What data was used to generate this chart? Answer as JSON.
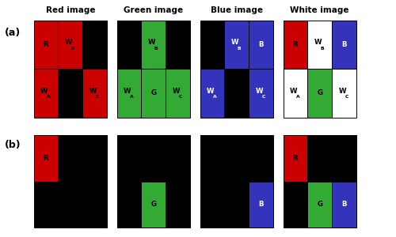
{
  "fig_width": 5.0,
  "fig_height": 3.0,
  "dpi": 100,
  "background": "#ffffff",
  "col_titles": [
    "Red image",
    "Green image",
    "Blue image",
    "White image"
  ],
  "cell_colors": {
    "K": "#000000",
    "R": "#cc0000",
    "G": "#33aa33",
    "B": "#3333bb",
    "W": "#ffffff"
  },
  "grids_a": [
    [
      [
        "R",
        "R",
        "K"
      ],
      [
        "R",
        "K",
        "R"
      ]
    ],
    [
      [
        "K",
        "G",
        "K"
      ],
      [
        "G",
        "G",
        "G"
      ]
    ],
    [
      [
        "K",
        "B",
        "B"
      ],
      [
        "B",
        "K",
        "B"
      ]
    ],
    [
      [
        "R",
        "W",
        "B"
      ],
      [
        "W",
        "G",
        "W"
      ]
    ]
  ],
  "labels_a": [
    [
      [
        "R",
        "W_B",
        ""
      ],
      [
        "W_A",
        "",
        "W_C"
      ]
    ],
    [
      [
        "",
        "W_B",
        ""
      ],
      [
        "W_A",
        "G",
        "W_C"
      ]
    ],
    [
      [
        "",
        "W_B",
        "B"
      ],
      [
        "W_A",
        "",
        "W_C"
      ]
    ],
    [
      [
        "R",
        "W_B",
        "B"
      ],
      [
        "W_A",
        "G",
        "W_C"
      ]
    ]
  ],
  "grids_b": [
    [
      [
        "R",
        "K",
        "K"
      ],
      [
        "K",
        "K",
        "K"
      ]
    ],
    [
      [
        "K",
        "K",
        "K"
      ],
      [
        "K",
        "G",
        "K"
      ]
    ],
    [
      [
        "K",
        "K",
        "K"
      ],
      [
        "K",
        "K",
        "B"
      ]
    ],
    [
      [
        "R",
        "K",
        "K"
      ],
      [
        "K",
        "G",
        "B"
      ]
    ]
  ],
  "labels_b": [
    [
      [
        "R",
        "",
        ""
      ],
      [
        "",
        "",
        ""
      ]
    ],
    [
      [
        "",
        "",
        ""
      ],
      [
        "",
        "G",
        ""
      ]
    ],
    [
      [
        "",
        "",
        ""
      ],
      [
        "",
        "",
        "B"
      ]
    ],
    [
      [
        "R",
        "",
        ""
      ],
      [
        "",
        "G",
        "B"
      ]
    ]
  ],
  "txt_white_on": [
    "B"
  ],
  "txt_black_on": [
    "R",
    "G",
    "W",
    "K"
  ]
}
